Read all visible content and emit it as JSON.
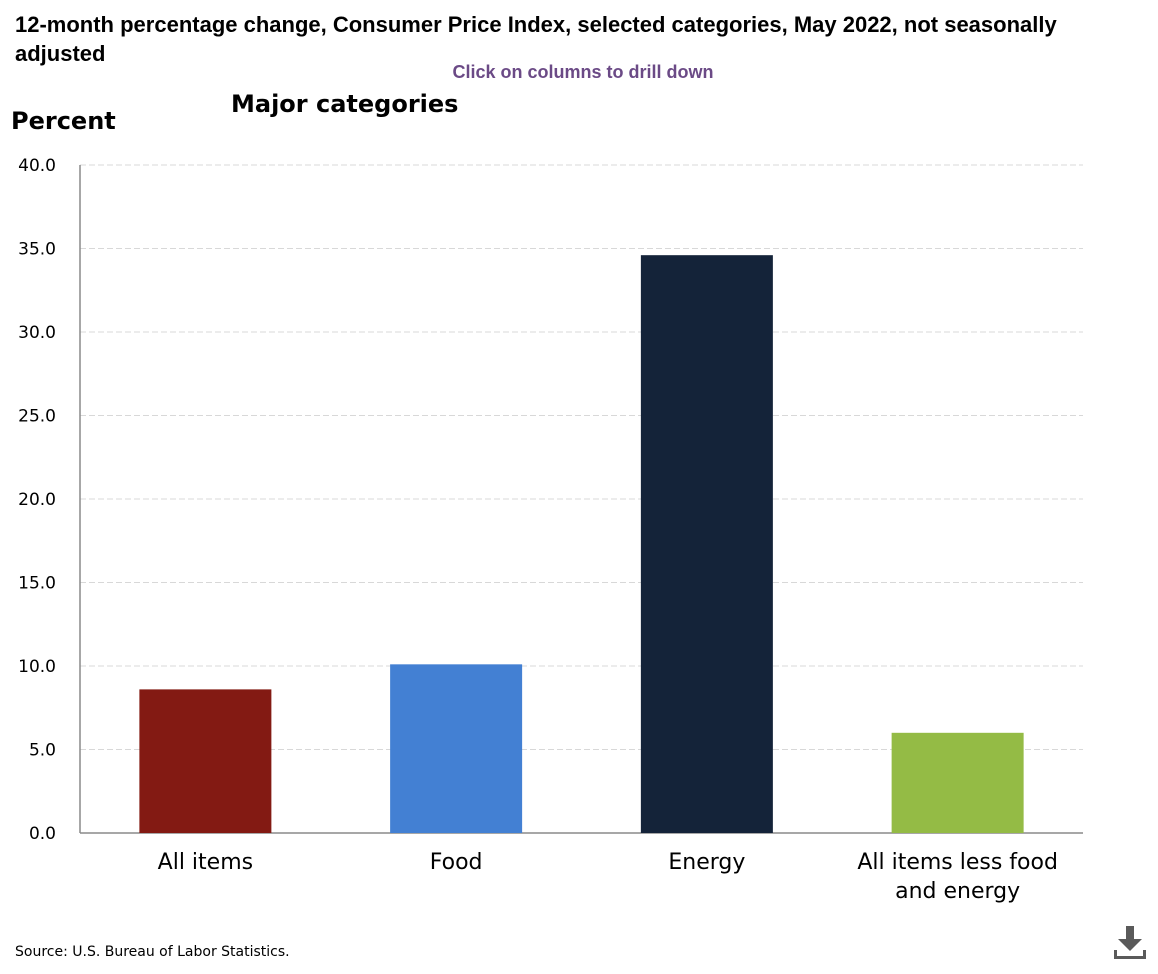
{
  "title": "12-month percentage change, Consumer Price Index, selected categories, May 2022, not seasonally adjusted",
  "drill_hint": "Click on columns to drill down",
  "source": "Source: U.S. Bureau of Labor Statistics.",
  "download_icon": "download-icon",
  "chart_data": {
    "type": "bar",
    "title": "Major categories",
    "ylabel": "Percent",
    "xlabel": "",
    "categories": [
      [
        "All items"
      ],
      [
        "Food"
      ],
      [
        "Energy"
      ],
      [
        "All items less food",
        "and energy"
      ]
    ],
    "values": [
      8.6,
      10.1,
      34.6,
      6.0
    ],
    "colors": [
      "#831a13",
      "#4380d3",
      "#142339",
      "#94bb45"
    ],
    "ylim": [
      0,
      40
    ],
    "yticks": [
      "0.0",
      "5.0",
      "10.0",
      "15.0",
      "20.0",
      "25.0",
      "30.0",
      "35.0",
      "40.0"
    ],
    "grid": true,
    "legend": "none"
  }
}
